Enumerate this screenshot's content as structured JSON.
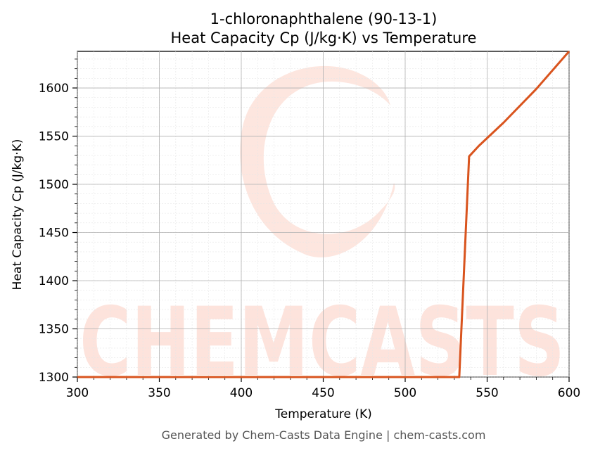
{
  "chart_data": {
    "type": "line",
    "title_line1": "1-chloronaphthalene (90-13-1)",
    "title_line2": "Heat Capacity Cp (J/kg·K) vs Temperature",
    "xlabel": "Temperature (K)",
    "ylabel": "Heat Capacity Cp (J/kg·K)",
    "xlim": [
      300,
      600
    ],
    "ylim": [
      1300,
      1638
    ],
    "xticks": [
      300,
      350,
      400,
      450,
      500,
      550,
      600
    ],
    "yticks": [
      1300,
      1350,
      1400,
      1450,
      1500,
      1550,
      1600
    ],
    "grid": true,
    "series": [
      {
        "color": "#d9541e",
        "x": [
          300,
          533,
          539,
          545,
          560,
          580,
          600
        ],
        "y": [
          1300,
          1300,
          1529,
          1540,
          1564,
          1599,
          1638
        ]
      }
    ]
  },
  "watermark": {
    "text": "CHEMCASTS",
    "color": "#fde3dc"
  },
  "footer": "Generated by Chem-Casts Data Engine | chem-casts.com"
}
